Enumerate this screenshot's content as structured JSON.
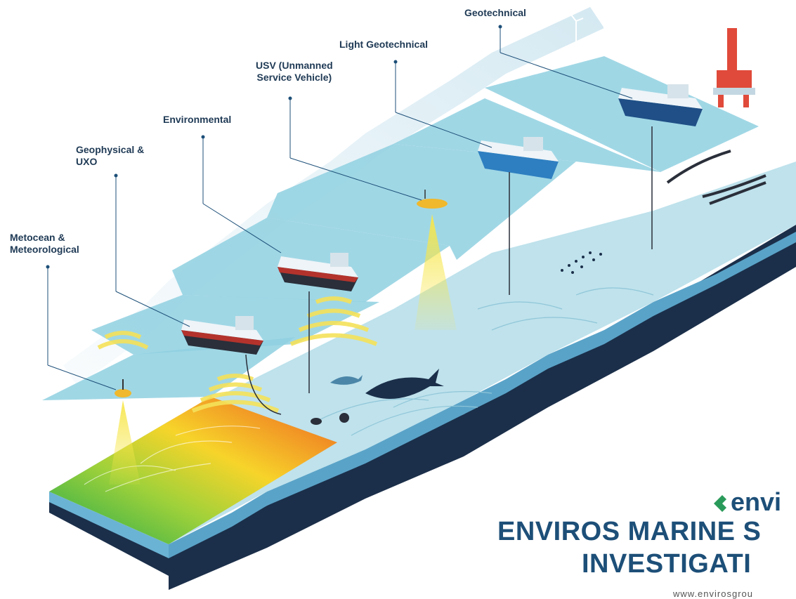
{
  "labels": {
    "geotechnical": "Geotechnical",
    "light_geotechnical": "Light Geotechnical",
    "usv": "USV (Unmanned\nService Vehicle)",
    "environmental": "Environmental",
    "geophysical": "Geophysical &\nUXO",
    "metocean": "Metocean &\nMeteorological"
  },
  "brand": {
    "logo_text": "envi",
    "title_line1": "ENVIROS MARINE S",
    "title_line2": "INVESTIGATI",
    "url": "www.envirosgrou"
  },
  "colors": {
    "brand_blue": "#1d4f78",
    "label_text": "#1f3a55",
    "water_panel": "#8fd0e0",
    "seabed_dark": "#1b2f4a",
    "brand_green": "#2a9a5a",
    "beam_yellow": "#f5e25a"
  },
  "icons": [
    "survey-vessel-icon",
    "metocean-buoy-icon",
    "usv-drone-icon",
    "oil-rig-icon",
    "wind-turbine-icon",
    "whale-icon",
    "dolphin-icon",
    "fish-school-icon",
    "octopus-icon",
    "turtle-icon",
    "submarine-cable-icon",
    "sonar-beam-icon",
    "enviros-logo-icon"
  ]
}
